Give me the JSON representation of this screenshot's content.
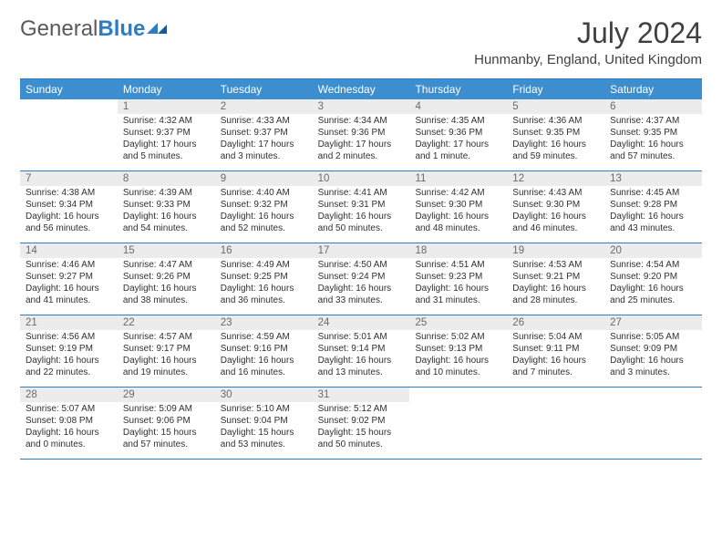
{
  "logo": {
    "text1": "General",
    "text2": "Blue"
  },
  "title": "July 2024",
  "location": "Hunmanby, England, United Kingdom",
  "colors": {
    "header_bg": "#3d8ecf",
    "rule": "#2d7dc4",
    "daynum_bg": "#ececec",
    "text": "#303030",
    "title_text": "#404040"
  },
  "dow": [
    "Sunday",
    "Monday",
    "Tuesday",
    "Wednesday",
    "Thursday",
    "Friday",
    "Saturday"
  ],
  "weeks": [
    [
      {
        "n": "",
        "sr": "",
        "ss": "",
        "dl": ""
      },
      {
        "n": "1",
        "sr": "Sunrise: 4:32 AM",
        "ss": "Sunset: 9:37 PM",
        "dl": "Daylight: 17 hours and 5 minutes."
      },
      {
        "n": "2",
        "sr": "Sunrise: 4:33 AM",
        "ss": "Sunset: 9:37 PM",
        "dl": "Daylight: 17 hours and 3 minutes."
      },
      {
        "n": "3",
        "sr": "Sunrise: 4:34 AM",
        "ss": "Sunset: 9:36 PM",
        "dl": "Daylight: 17 hours and 2 minutes."
      },
      {
        "n": "4",
        "sr": "Sunrise: 4:35 AM",
        "ss": "Sunset: 9:36 PM",
        "dl": "Daylight: 17 hours and 1 minute."
      },
      {
        "n": "5",
        "sr": "Sunrise: 4:36 AM",
        "ss": "Sunset: 9:35 PM",
        "dl": "Daylight: 16 hours and 59 minutes."
      },
      {
        "n": "6",
        "sr": "Sunrise: 4:37 AM",
        "ss": "Sunset: 9:35 PM",
        "dl": "Daylight: 16 hours and 57 minutes."
      }
    ],
    [
      {
        "n": "7",
        "sr": "Sunrise: 4:38 AM",
        "ss": "Sunset: 9:34 PM",
        "dl": "Daylight: 16 hours and 56 minutes."
      },
      {
        "n": "8",
        "sr": "Sunrise: 4:39 AM",
        "ss": "Sunset: 9:33 PM",
        "dl": "Daylight: 16 hours and 54 minutes."
      },
      {
        "n": "9",
        "sr": "Sunrise: 4:40 AM",
        "ss": "Sunset: 9:32 PM",
        "dl": "Daylight: 16 hours and 52 minutes."
      },
      {
        "n": "10",
        "sr": "Sunrise: 4:41 AM",
        "ss": "Sunset: 9:31 PM",
        "dl": "Daylight: 16 hours and 50 minutes."
      },
      {
        "n": "11",
        "sr": "Sunrise: 4:42 AM",
        "ss": "Sunset: 9:30 PM",
        "dl": "Daylight: 16 hours and 48 minutes."
      },
      {
        "n": "12",
        "sr": "Sunrise: 4:43 AM",
        "ss": "Sunset: 9:30 PM",
        "dl": "Daylight: 16 hours and 46 minutes."
      },
      {
        "n": "13",
        "sr": "Sunrise: 4:45 AM",
        "ss": "Sunset: 9:28 PM",
        "dl": "Daylight: 16 hours and 43 minutes."
      }
    ],
    [
      {
        "n": "14",
        "sr": "Sunrise: 4:46 AM",
        "ss": "Sunset: 9:27 PM",
        "dl": "Daylight: 16 hours and 41 minutes."
      },
      {
        "n": "15",
        "sr": "Sunrise: 4:47 AM",
        "ss": "Sunset: 9:26 PM",
        "dl": "Daylight: 16 hours and 38 minutes."
      },
      {
        "n": "16",
        "sr": "Sunrise: 4:49 AM",
        "ss": "Sunset: 9:25 PM",
        "dl": "Daylight: 16 hours and 36 minutes."
      },
      {
        "n": "17",
        "sr": "Sunrise: 4:50 AM",
        "ss": "Sunset: 9:24 PM",
        "dl": "Daylight: 16 hours and 33 minutes."
      },
      {
        "n": "18",
        "sr": "Sunrise: 4:51 AM",
        "ss": "Sunset: 9:23 PM",
        "dl": "Daylight: 16 hours and 31 minutes."
      },
      {
        "n": "19",
        "sr": "Sunrise: 4:53 AM",
        "ss": "Sunset: 9:21 PM",
        "dl": "Daylight: 16 hours and 28 minutes."
      },
      {
        "n": "20",
        "sr": "Sunrise: 4:54 AM",
        "ss": "Sunset: 9:20 PM",
        "dl": "Daylight: 16 hours and 25 minutes."
      }
    ],
    [
      {
        "n": "21",
        "sr": "Sunrise: 4:56 AM",
        "ss": "Sunset: 9:19 PM",
        "dl": "Daylight: 16 hours and 22 minutes."
      },
      {
        "n": "22",
        "sr": "Sunrise: 4:57 AM",
        "ss": "Sunset: 9:17 PM",
        "dl": "Daylight: 16 hours and 19 minutes."
      },
      {
        "n": "23",
        "sr": "Sunrise: 4:59 AM",
        "ss": "Sunset: 9:16 PM",
        "dl": "Daylight: 16 hours and 16 minutes."
      },
      {
        "n": "24",
        "sr": "Sunrise: 5:01 AM",
        "ss": "Sunset: 9:14 PM",
        "dl": "Daylight: 16 hours and 13 minutes."
      },
      {
        "n": "25",
        "sr": "Sunrise: 5:02 AM",
        "ss": "Sunset: 9:13 PM",
        "dl": "Daylight: 16 hours and 10 minutes."
      },
      {
        "n": "26",
        "sr": "Sunrise: 5:04 AM",
        "ss": "Sunset: 9:11 PM",
        "dl": "Daylight: 16 hours and 7 minutes."
      },
      {
        "n": "27",
        "sr": "Sunrise: 5:05 AM",
        "ss": "Sunset: 9:09 PM",
        "dl": "Daylight: 16 hours and 3 minutes."
      }
    ],
    [
      {
        "n": "28",
        "sr": "Sunrise: 5:07 AM",
        "ss": "Sunset: 9:08 PM",
        "dl": "Daylight: 16 hours and 0 minutes."
      },
      {
        "n": "29",
        "sr": "Sunrise: 5:09 AM",
        "ss": "Sunset: 9:06 PM",
        "dl": "Daylight: 15 hours and 57 minutes."
      },
      {
        "n": "30",
        "sr": "Sunrise: 5:10 AM",
        "ss": "Sunset: 9:04 PM",
        "dl": "Daylight: 15 hours and 53 minutes."
      },
      {
        "n": "31",
        "sr": "Sunrise: 5:12 AM",
        "ss": "Sunset: 9:02 PM",
        "dl": "Daylight: 15 hours and 50 minutes."
      },
      {
        "n": "",
        "sr": "",
        "ss": "",
        "dl": ""
      },
      {
        "n": "",
        "sr": "",
        "ss": "",
        "dl": ""
      },
      {
        "n": "",
        "sr": "",
        "ss": "",
        "dl": ""
      }
    ]
  ]
}
